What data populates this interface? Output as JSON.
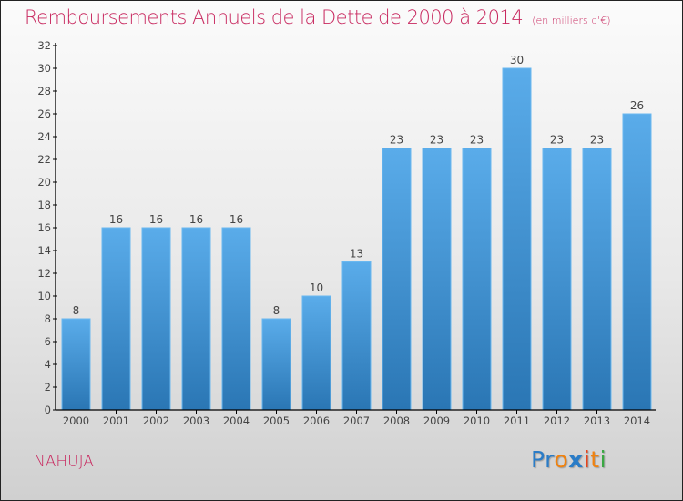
{
  "header": {
    "title": "Remboursements Annuels de la Dette de 2000 à 2014",
    "unit_note": "(en milliers d'€)"
  },
  "footer": {
    "commune": "NAHUJA",
    "brand": {
      "letters": [
        "P",
        "r",
        "o",
        "x",
        "i",
        "t",
        "i"
      ],
      "colors": [
        "#2a7cc7",
        "#2a7cc7",
        "#f0820f",
        "#2a7cc7",
        "#e8421a",
        "#f0820f",
        "#3aa843"
      ]
    }
  },
  "colors": {
    "title": "#c8285f",
    "bar_top": "#5aacea",
    "bar_bottom": "#2a76b4",
    "axis": "#000000",
    "tick_label": "#444444"
  },
  "chart_data": {
    "type": "bar",
    "title": "Remboursements Annuels de la Dette de 2000 à 2014",
    "subtitle": "(en milliers d'€)",
    "xlabel": "",
    "ylabel": "",
    "categories": [
      "2000",
      "2001",
      "2002",
      "2003",
      "2004",
      "2005",
      "2006",
      "2007",
      "2008",
      "2009",
      "2010",
      "2011",
      "2012",
      "2013",
      "2014"
    ],
    "values": [
      8,
      16,
      16,
      16,
      16,
      8,
      10,
      13,
      23,
      23,
      23,
      30,
      23,
      23,
      26
    ],
    "data_labels": [
      "8",
      "16",
      "16",
      "16",
      "16",
      "8",
      "10",
      "13",
      "23",
      "23",
      "23",
      "30",
      "23",
      "23",
      "26"
    ],
    "ylim": [
      0,
      32
    ],
    "yticks": [
      0,
      2,
      4,
      6,
      8,
      10,
      12,
      14,
      16,
      18,
      20,
      22,
      24,
      26,
      28,
      30,
      32
    ],
    "grid": false,
    "legend": "none"
  }
}
